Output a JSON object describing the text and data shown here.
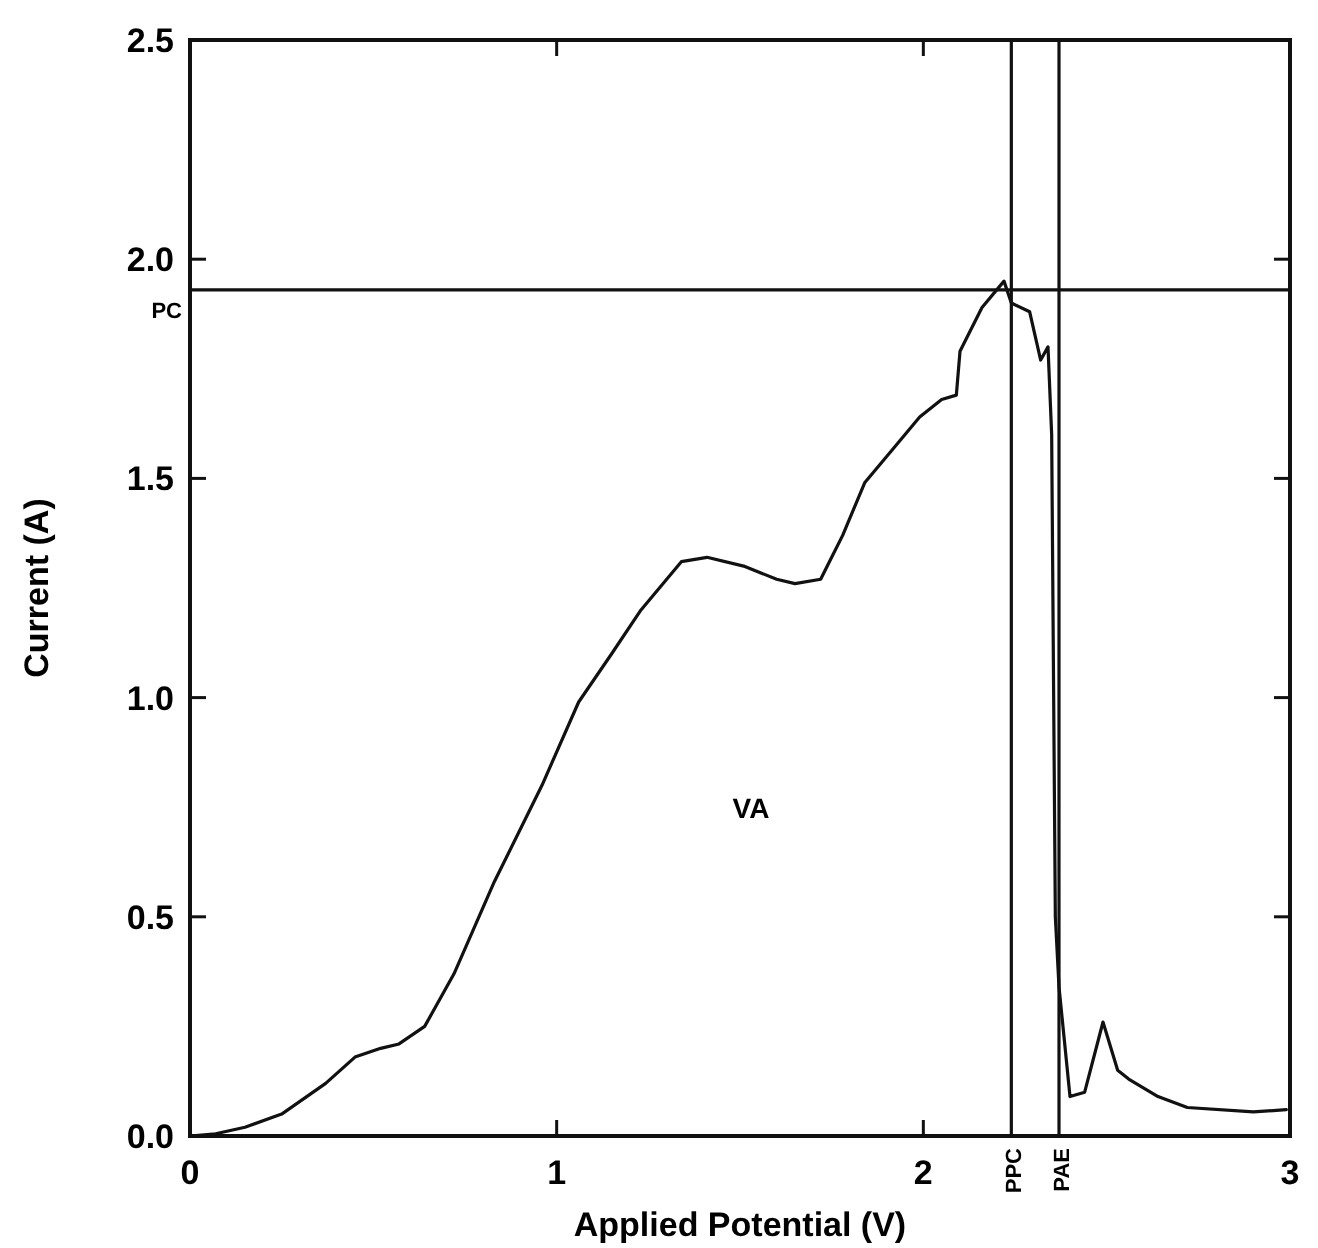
{
  "chart_data": {
    "type": "line",
    "xlabel": "Applied Potential   (V)",
    "ylabel": "Current (A)",
    "xlim": [
      0,
      3
    ],
    "ylim": [
      0,
      2.5
    ],
    "xticks": [
      0,
      1,
      2,
      3
    ],
    "yticks": [
      {
        "value": 0,
        "label": "0.0"
      },
      {
        "value": 0.5,
        "label": "0.5"
      },
      {
        "value": 1,
        "label": "1.0"
      },
      {
        "value": 1.5,
        "label": "1.5"
      },
      {
        "value": 2,
        "label": "2.0"
      },
      {
        "value": 2.5,
        "label": "2.5"
      }
    ],
    "grid": false,
    "marker": "none",
    "line_style": "solid",
    "series": [
      {
        "color": "#111111",
        "x": [
          0,
          0.07,
          0.15,
          0.25,
          0.37,
          0.45,
          0.52,
          0.57,
          0.64,
          0.72,
          0.83,
          0.96,
          1.06,
          1.15,
          1.23,
          1.34,
          1.41,
          1.51,
          1.6,
          1.65,
          1.72,
          1.75,
          1.78,
          1.84,
          1.92,
          1.99,
          2.05,
          2.09,
          2.1,
          2.16,
          2.22,
          2.24,
          2.29,
          2.32,
          2.34,
          2.35,
          2.36,
          2.37,
          2.4,
          2.44,
          2.49,
          2.53,
          2.56,
          2.64,
          2.72,
          2.9,
          2.99
        ],
        "values": [
          0,
          0.005,
          0.02,
          0.05,
          0.12,
          0.18,
          0.2,
          0.21,
          0.25,
          0.37,
          0.58,
          0.8,
          0.99,
          1.1,
          1.2,
          1.31,
          1.32,
          1.3,
          1.27,
          1.26,
          1.27,
          1.32,
          1.37,
          1.49,
          1.57,
          1.64,
          1.68,
          1.69,
          1.79,
          1.89,
          1.95,
          1.9,
          1.88,
          1.77,
          1.8,
          1.6,
          0.5,
          0.34,
          0.09,
          0.1,
          0.26,
          0.15,
          0.13,
          0.09,
          0.065,
          0.055,
          0.06
        ]
      }
    ],
    "ref_lines": [
      {
        "axis": "y",
        "value": 1.93,
        "label": "PC",
        "color": "#111111"
      },
      {
        "axis": "x",
        "value": 2.24,
        "label": "PPC",
        "color": "#111111"
      },
      {
        "axis": "x",
        "value": 2.37,
        "label": "PAE",
        "color": "#111111"
      }
    ],
    "annotations": [
      "VA"
    ]
  }
}
